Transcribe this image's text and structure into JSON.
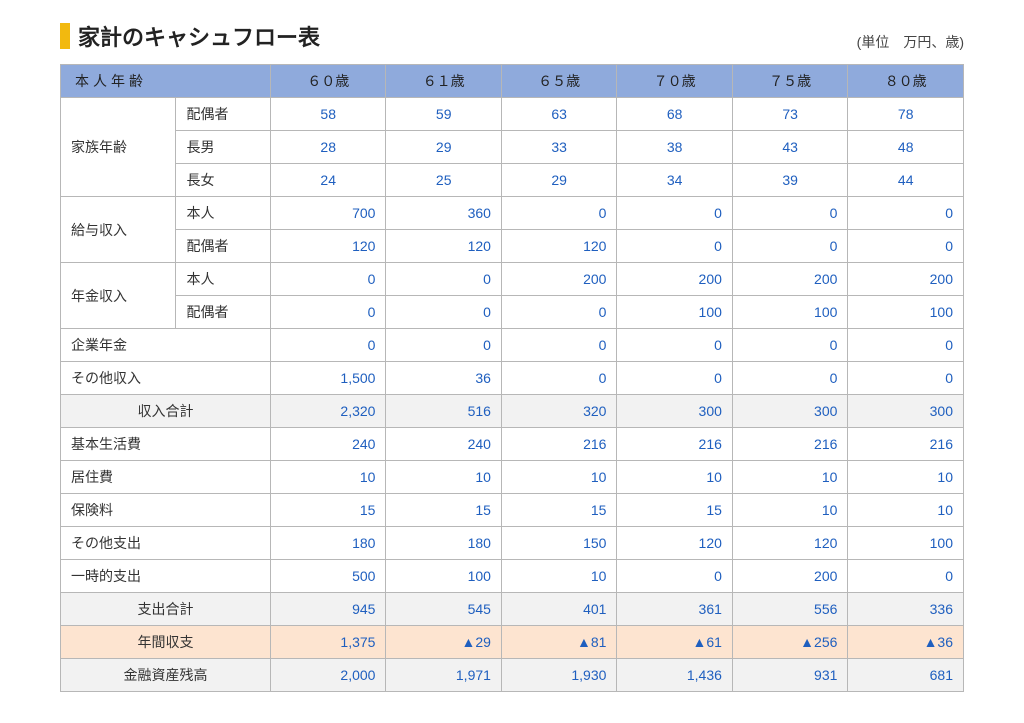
{
  "title": "家計のキャシュフロー表",
  "unit": "(単位　万円、歳)",
  "colors": {
    "accent": "#f2b90f",
    "header_bg": "#8faadc",
    "subtotal_bg": "#f2f2f2",
    "balance_bg": "#fde4d0",
    "border": "#b7b7b7",
    "value_text": "#1f5fbf"
  },
  "header": {
    "age_label": "本人年齢",
    "ages": [
      "６０歳",
      "６１歳",
      "６５歳",
      "７０歳",
      "７５歳",
      "８０歳"
    ]
  },
  "family": {
    "group_label": "家族年齢",
    "rows": [
      {
        "label": "配偶者",
        "vals": [
          "58",
          "59",
          "63",
          "68",
          "73",
          "78"
        ]
      },
      {
        "label": "長男",
        "vals": [
          "28",
          "29",
          "33",
          "38",
          "43",
          "48"
        ]
      },
      {
        "label": "長女",
        "vals": [
          "24",
          "25",
          "29",
          "34",
          "39",
          "44"
        ]
      }
    ]
  },
  "salary": {
    "group_label": "給与収入",
    "rows": [
      {
        "label": "本人",
        "vals": [
          "700",
          "360",
          "0",
          "0",
          "0",
          "0"
        ]
      },
      {
        "label": "配偶者",
        "vals": [
          "120",
          "120",
          "120",
          "0",
          "0",
          "0"
        ]
      }
    ]
  },
  "pension": {
    "group_label": "年金収入",
    "rows": [
      {
        "label": "本人",
        "vals": [
          "0",
          "0",
          "200",
          "200",
          "200",
          "200"
        ]
      },
      {
        "label": "配偶者",
        "vals": [
          "0",
          "0",
          "0",
          "100",
          "100",
          "100"
        ]
      }
    ]
  },
  "corp_pension": {
    "label": "企業年金",
    "vals": [
      "0",
      "0",
      "0",
      "0",
      "0",
      "0"
    ]
  },
  "other_income": {
    "label": "その他収入",
    "vals": [
      "1,500",
      "36",
      "0",
      "0",
      "0",
      "0"
    ]
  },
  "income_total": {
    "label": "収入合計",
    "vals": [
      "2,320",
      "516",
      "320",
      "300",
      "300",
      "300"
    ]
  },
  "living": {
    "label": "基本生活費",
    "vals": [
      "240",
      "240",
      "216",
      "216",
      "216",
      "216"
    ]
  },
  "housing": {
    "label": "居住費",
    "vals": [
      "10",
      "10",
      "10",
      "10",
      "10",
      "10"
    ]
  },
  "insurance": {
    "label": "保険料",
    "vals": [
      "15",
      "15",
      "15",
      "15",
      "10",
      "10"
    ]
  },
  "other_expense": {
    "label": "その他支出",
    "vals": [
      "180",
      "180",
      "150",
      "120",
      "120",
      "100"
    ]
  },
  "onetime": {
    "label": "一時的支出",
    "vals": [
      "500",
      "100",
      "10",
      "0",
      "200",
      "0"
    ]
  },
  "expense_total": {
    "label": "支出合計",
    "vals": [
      "945",
      "545",
      "401",
      "361",
      "556",
      "336"
    ]
  },
  "balance": {
    "label": "年間収支",
    "vals": [
      "1,375",
      "▲29",
      "▲81",
      "▲61",
      "▲256",
      "▲36"
    ]
  },
  "assets": {
    "label": "金融資産残高",
    "vals": [
      "2,000",
      "1,971",
      "1,930",
      "1,436",
      "931",
      "681"
    ]
  }
}
